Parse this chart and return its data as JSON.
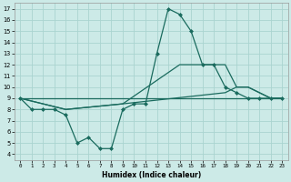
{
  "xlabel": "Humidex (Indice chaleur)",
  "bg_color": "#cceae7",
  "grid_color": "#aad4d0",
  "line_color": "#1a6b5e",
  "xlim": [
    -0.5,
    23.5
  ],
  "ylim": [
    3.5,
    17.5
  ],
  "xticks": [
    0,
    1,
    2,
    3,
    4,
    5,
    6,
    7,
    8,
    9,
    10,
    11,
    12,
    13,
    14,
    15,
    16,
    17,
    18,
    19,
    20,
    21,
    22,
    23
  ],
  "yticks": [
    4,
    5,
    6,
    7,
    8,
    9,
    10,
    11,
    12,
    13,
    14,
    15,
    16,
    17
  ],
  "series": [
    {
      "x": [
        0,
        1,
        2,
        3,
        4,
        5,
        6,
        7,
        8,
        9,
        10,
        11,
        12,
        13,
        14,
        15,
        16,
        17,
        18,
        19,
        20,
        21,
        22,
        23
      ],
      "y": [
        9,
        8,
        8,
        8,
        7.5,
        5,
        5.5,
        4.5,
        4.5,
        8,
        8.5,
        8.5,
        13,
        17,
        16.5,
        15,
        12,
        12,
        10,
        9.5,
        9,
        9,
        9,
        9
      ],
      "marker": "D",
      "markersize": 2.0,
      "linewidth": 0.9
    },
    {
      "x": [
        0,
        4,
        9,
        14,
        16,
        17,
        18,
        19,
        20,
        21,
        22,
        23
      ],
      "y": [
        9,
        8,
        8.5,
        12,
        12,
        12,
        12,
        10,
        10,
        9.5,
        9,
        9
      ],
      "marker": null,
      "linewidth": 0.9
    },
    {
      "x": [
        0,
        4,
        9,
        18,
        19,
        20,
        21,
        22,
        23
      ],
      "y": [
        9,
        8,
        8.5,
        9.5,
        10,
        10,
        9.5,
        9,
        9
      ],
      "marker": null,
      "linewidth": 0.9
    },
    {
      "x": [
        0,
        23
      ],
      "y": [
        9,
        9
      ],
      "marker": null,
      "linewidth": 0.9
    }
  ]
}
